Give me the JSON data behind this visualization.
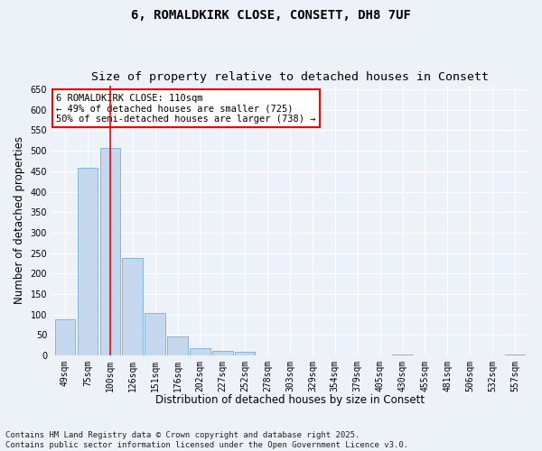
{
  "title": "6, ROMALDKIRK CLOSE, CONSETT, DH8 7UF",
  "subtitle": "Size of property relative to detached houses in Consett",
  "xlabel": "Distribution of detached houses by size in Consett",
  "ylabel": "Number of detached properties",
  "categories": [
    "49sqm",
    "75sqm",
    "100sqm",
    "126sqm",
    "151sqm",
    "176sqm",
    "202sqm",
    "227sqm",
    "252sqm",
    "278sqm",
    "303sqm",
    "329sqm",
    "354sqm",
    "379sqm",
    "405sqm",
    "430sqm",
    "455sqm",
    "481sqm",
    "506sqm",
    "532sqm",
    "557sqm"
  ],
  "values": [
    88,
    458,
    507,
    238,
    103,
    47,
    17,
    12,
    8,
    1,
    0,
    0,
    0,
    0,
    0,
    3,
    0,
    0,
    0,
    0,
    3
  ],
  "bar_color": "#c5d8ed",
  "bar_edge_color": "#7aadd4",
  "vline_x": 2,
  "vline_color": "red",
  "annotation_text": "6 ROMALDKIRK CLOSE: 110sqm\n← 49% of detached houses are smaller (725)\n50% of semi-detached houses are larger (738) →",
  "annotation_box_color": "white",
  "annotation_box_edge": "red",
  "ylim": [
    0,
    660
  ],
  "yticks": [
    0,
    50,
    100,
    150,
    200,
    250,
    300,
    350,
    400,
    450,
    500,
    550,
    600,
    650
  ],
  "footer": "Contains HM Land Registry data © Crown copyright and database right 2025.\nContains public sector information licensed under the Open Government Licence v3.0.",
  "background_color": "#edf2f9",
  "plot_background": "#edf2f9",
  "grid_color": "white",
  "title_fontsize": 10,
  "subtitle_fontsize": 9.5,
  "axis_label_fontsize": 8.5,
  "tick_fontsize": 7,
  "footer_fontsize": 6.5,
  "annotation_fontsize": 7.5
}
